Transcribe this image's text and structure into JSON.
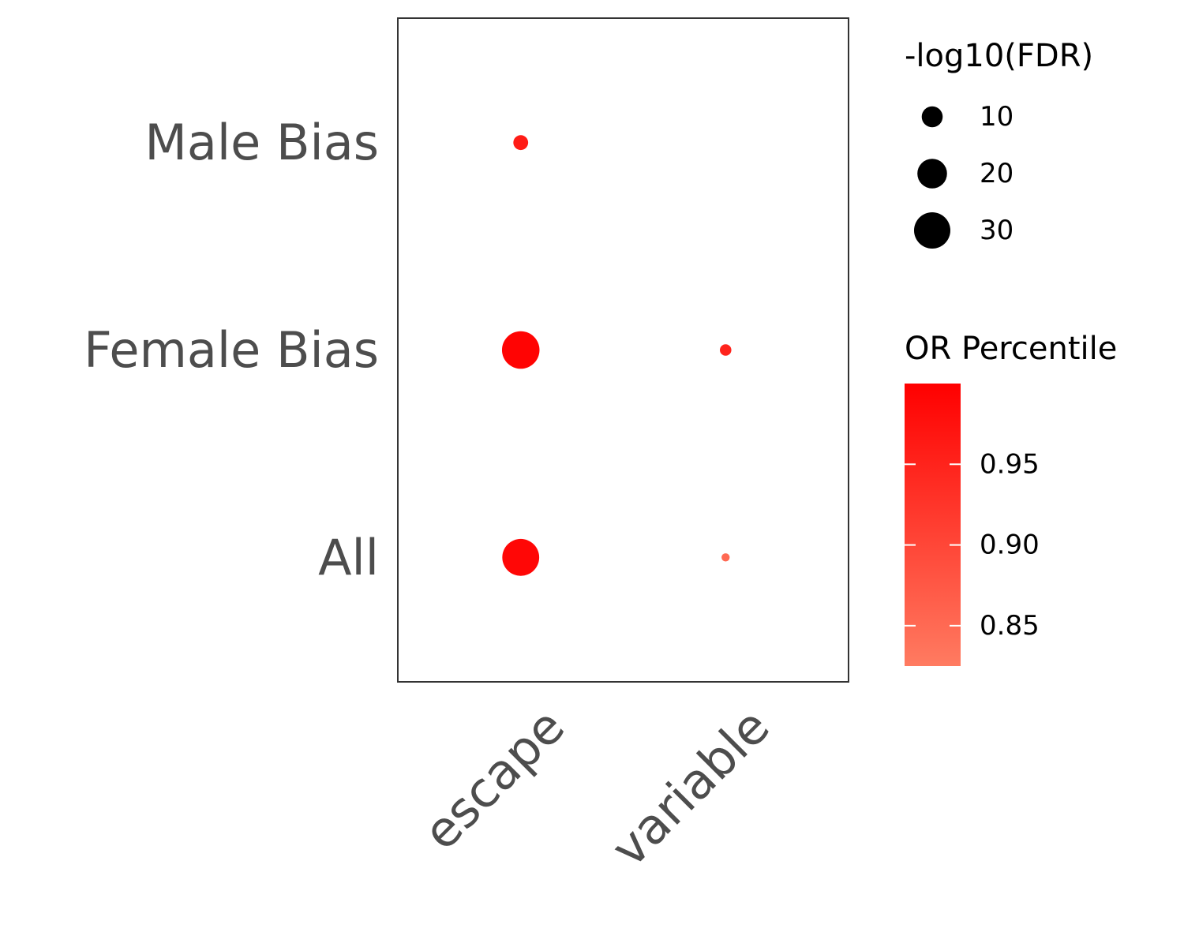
{
  "chart_data": {
    "type": "scatter",
    "x_categories": [
      "escape",
      "variable"
    ],
    "y_categories": [
      "All",
      "Female Bias",
      "Male Bias"
    ],
    "points": [
      {
        "x": "escape",
        "y": "Male Bias",
        "neg_log10_fdr": 5,
        "or_percentile": 0.96
      },
      {
        "x": "escape",
        "y": "Female Bias",
        "neg_log10_fdr": 32,
        "or_percentile": 0.995
      },
      {
        "x": "escape",
        "y": "All",
        "neg_log10_fdr": 31,
        "or_percentile": 0.99
      },
      {
        "x": "variable",
        "y": "Female Bias",
        "neg_log10_fdr": 3,
        "or_percentile": 0.95
      },
      {
        "x": "variable",
        "y": "All",
        "neg_log10_fdr": 1.5,
        "or_percentile": 0.85
      }
    ],
    "size_legend": {
      "title": "-log10(FDR)",
      "breaks": [
        10,
        20,
        30
      ],
      "labels": [
        "10",
        "20",
        "30"
      ]
    },
    "color_legend": {
      "title": "OR Percentile",
      "range": [
        0.825,
        1.0
      ],
      "breaks": [
        0.85,
        0.9,
        0.95
      ],
      "labels": [
        "0.85",
        "0.90",
        "0.95"
      ],
      "low_color": "#ff7b61",
      "high_color": "#ff0000"
    },
    "grid": false,
    "legend_position": "right"
  }
}
